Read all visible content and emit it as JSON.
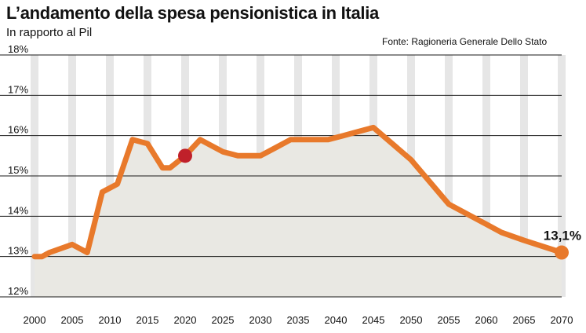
{
  "title": "L’andamento della spesa pensionistica in Italia",
  "subtitle": "In rapporto al Pil",
  "source": "Fonte: Ragioneria Generale Dello Stato",
  "colors": {
    "line": "#e8792b",
    "area": "#e9e8e3",
    "highlight": "#c0202a",
    "stripe": "#e6e6e6",
    "grid": "#1a1a1a"
  },
  "chart_data": {
    "type": "area",
    "title": "L’andamento della spesa pensionistica in Italia",
    "subtitle": "In rapporto al Pil",
    "xlabel": "",
    "ylabel": "",
    "xlim": [
      2000,
      2070
    ],
    "ylim": [
      12,
      18
    ],
    "x_ticks": [
      "2000",
      "2005",
      "2010",
      "2015",
      "2020",
      "2025",
      "2030",
      "2035",
      "2040",
      "2045",
      "2050",
      "2055",
      "2060",
      "2065",
      "2070"
    ],
    "y_ticks": [
      "12%",
      "13%",
      "14%",
      "15%",
      "16%",
      "17%",
      "18%"
    ],
    "grid": "horizontal",
    "series": [
      {
        "x": [
          2000,
          2001,
          2002,
          2005,
          2007,
          2009,
          2011,
          2013,
          2015,
          2017,
          2018,
          2020,
          2022,
          2025,
          2027,
          2030,
          2032,
          2034,
          2036,
          2039,
          2041,
          2043,
          2045,
          2050,
          2055,
          2060,
          2062,
          2065,
          2070
        ],
        "values": [
          13.0,
          13.0,
          13.1,
          13.3,
          13.1,
          14.6,
          14.8,
          15.9,
          15.8,
          15.2,
          15.2,
          15.5,
          15.9,
          15.6,
          15.5,
          15.5,
          15.7,
          15.9,
          15.9,
          15.9,
          16.0,
          16.1,
          16.2,
          15.4,
          14.3,
          13.8,
          13.6,
          13.4,
          13.1
        ]
      }
    ],
    "highlight": {
      "x": 2020,
      "y": 15.5
    },
    "end_point": {
      "x": 2070,
      "y": 13.1,
      "label": "13,1%"
    }
  }
}
